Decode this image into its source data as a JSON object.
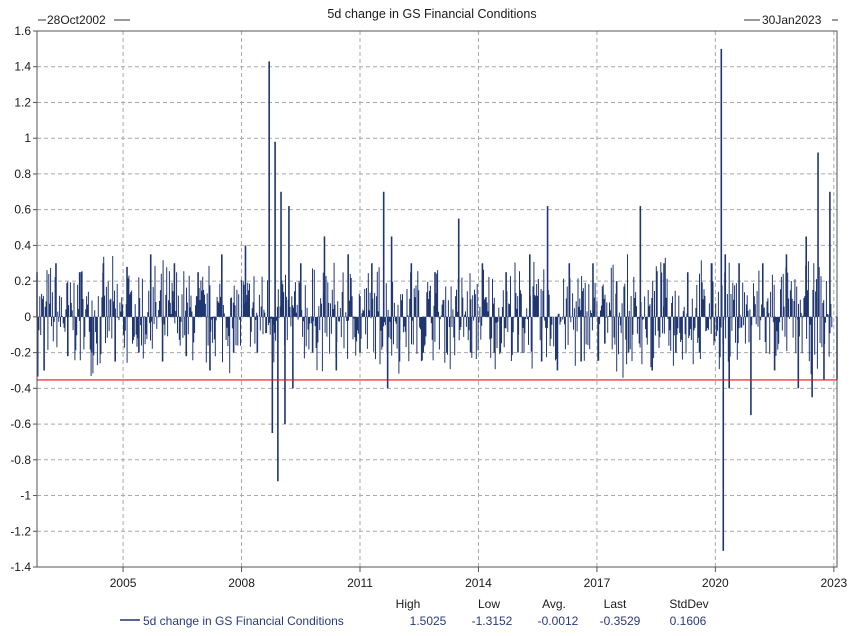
{
  "chart_data": {
    "type": "line",
    "title": "5d change in GS Financial Conditions",
    "start_label": "28Oct2002",
    "end_label": "30Jan2023",
    "x_start": 2002.82,
    "x_end": 2023.08,
    "ylim": [
      -1.4,
      1.6
    ],
    "y_ticks": [
      "1.6",
      "1.4",
      "1.2",
      "1",
      "0.8",
      "0.6",
      "0.4",
      "0.2",
      "0",
      "-0.2",
      "-0.4",
      "-0.6",
      "-0.8",
      "-1",
      "-1.2",
      "-1.4"
    ],
    "x_ticks": [
      {
        "label": "2005",
        "x": 2005
      },
      {
        "label": "2008",
        "x": 2008
      },
      {
        "label": "2011",
        "x": 2011
      },
      {
        "label": "2014",
        "x": 2014
      },
      {
        "label": "2017",
        "x": 2017
      },
      {
        "label": "2020",
        "x": 2020
      },
      {
        "label": "2023",
        "x": 2023
      }
    ],
    "reference_line": {
      "y": -0.3529,
      "color": "#e0141e"
    },
    "series": [
      {
        "name": "5d change in GS Financial Conditions",
        "color": "#1f3670",
        "note": "daily 5d-change values; key extremes read from chart",
        "x": [
          2002.82,
          2003.0,
          2003.3,
          2003.6,
          2003.9,
          2004.2,
          2004.5,
          2004.8,
          2005.1,
          2005.4,
          2005.7,
          2006.0,
          2006.3,
          2006.6,
          2006.9,
          2007.2,
          2007.5,
          2007.8,
          2008.1,
          2008.4,
          2008.7,
          2008.78,
          2008.85,
          2008.92,
          2009.0,
          2009.1,
          2009.2,
          2009.3,
          2009.5,
          2009.8,
          2010.1,
          2010.4,
          2010.7,
          2011.0,
          2011.3,
          2011.6,
          2011.7,
          2011.8,
          2012.0,
          2012.3,
          2012.6,
          2012.9,
          2013.2,
          2013.5,
          2013.8,
          2014.1,
          2014.4,
          2014.7,
          2015.0,
          2015.3,
          2015.6,
          2015.75,
          2016.0,
          2016.3,
          2016.6,
          2016.9,
          2017.2,
          2017.5,
          2017.8,
          2018.1,
          2018.4,
          2018.7,
          2019.0,
          2019.3,
          2019.6,
          2019.9,
          2020.15,
          2020.2,
          2020.25,
          2020.35,
          2020.6,
          2020.9,
          2021.2,
          2021.5,
          2021.8,
          2022.1,
          2022.3,
          2022.45,
          2022.6,
          2022.75,
          2022.9,
          2023.08
        ],
        "y": [
          0.25,
          -0.3,
          0.3,
          -0.22,
          0.25,
          -0.2,
          0.3,
          -0.25,
          0.28,
          -0.2,
          0.35,
          -0.25,
          0.3,
          -0.22,
          0.25,
          -0.3,
          0.35,
          -0.2,
          0.4,
          -0.2,
          1.43,
          -0.65,
          0.98,
          -0.92,
          0.7,
          -0.6,
          0.62,
          -0.4,
          0.3,
          -0.2,
          0.45,
          -0.3,
          0.35,
          -0.2,
          0.3,
          0.7,
          -0.4,
          0.45,
          -0.25,
          0.3,
          -0.2,
          0.25,
          -0.2,
          0.55,
          -0.2,
          0.3,
          -0.2,
          0.25,
          -0.2,
          0.35,
          -0.25,
          0.62,
          -0.3,
          0.3,
          -0.25,
          0.3,
          -0.15,
          0.2,
          -0.2,
          0.62,
          -0.3,
          0.3,
          -0.2,
          0.25,
          -0.2,
          0.3,
          1.5,
          -1.31,
          0.35,
          -0.4,
          0.3,
          -0.55,
          0.3,
          -0.3,
          0.35,
          -0.4,
          0.45,
          -0.45,
          0.92,
          -0.35,
          0.7,
          -0.35
        ]
      }
    ],
    "legend": {
      "label": "5d change in GS Financial Conditions",
      "stats_headers": [
        "High",
        "Low",
        "Avg.",
        "Last",
        "StdDev"
      ],
      "stats_values": [
        "1.5025",
        "-1.3152",
        "-0.0012",
        "-0.3529",
        "0.1606"
      ]
    }
  }
}
